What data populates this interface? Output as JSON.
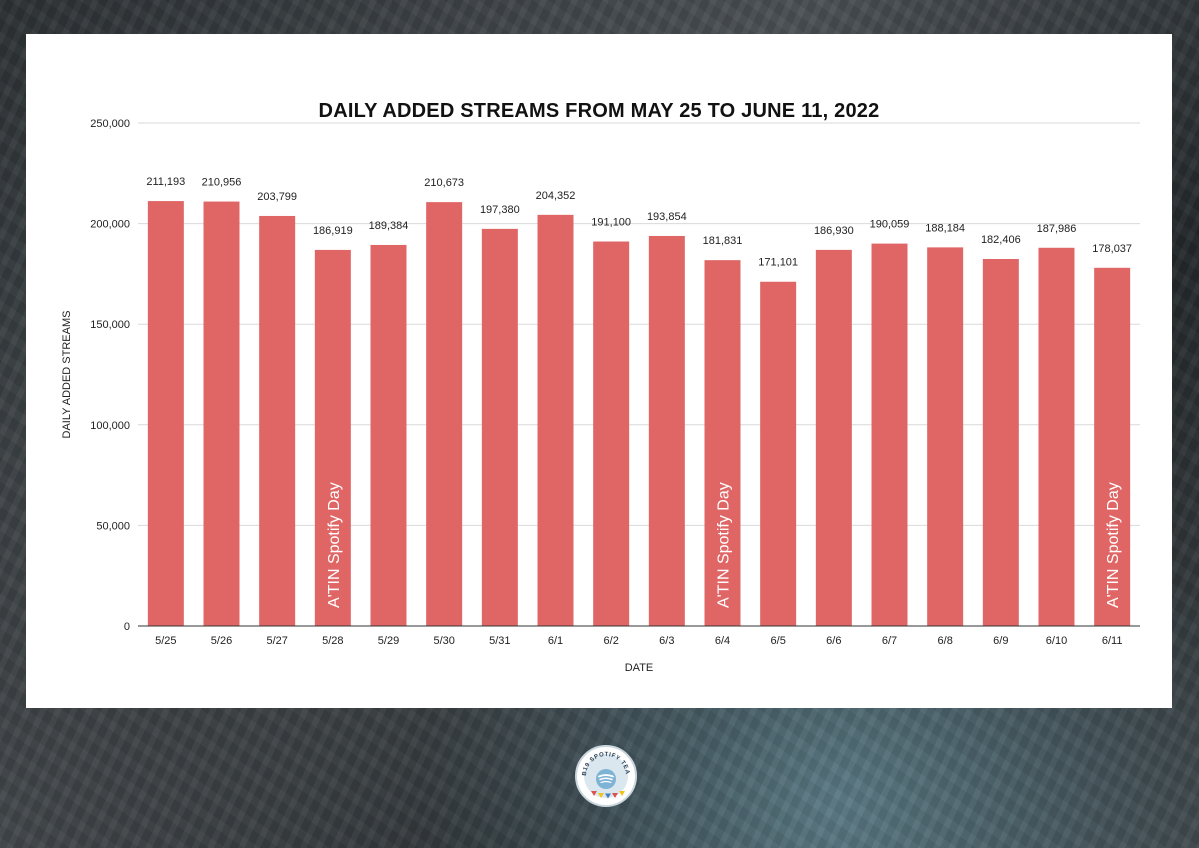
{
  "chart_data": {
    "type": "bar",
    "title": "DAILY ADDED STREAMS FROM MAY 25 TO JUNE 11, 2022",
    "xlabel": "DATE",
    "ylabel": "DAILY ADDED STREAMS",
    "ylim": [
      0,
      250000
    ],
    "yticks": [
      0,
      50000,
      100000,
      150000,
      200000,
      250000
    ],
    "ytick_labels": [
      "0",
      "50,000",
      "100,000",
      "150,000",
      "200,000",
      "250,000"
    ],
    "grid": true,
    "bar_color": "#e06666",
    "categories": [
      "5/25",
      "5/26",
      "5/27",
      "5/28",
      "5/29",
      "5/30",
      "5/31",
      "6/1",
      "6/2",
      "6/3",
      "6/4",
      "6/5",
      "6/6",
      "6/7",
      "6/8",
      "6/9",
      "6/10",
      "6/11"
    ],
    "values": [
      211193,
      210956,
      203799,
      186919,
      189384,
      210673,
      197380,
      204352,
      191100,
      193854,
      181831,
      171101,
      186930,
      190059,
      188184,
      182406,
      187986,
      178037
    ],
    "value_labels": [
      "211,193",
      "210,956",
      "203,799",
      "186,919",
      "189,384",
      "210,673",
      "197,380",
      "204,352",
      "191,100",
      "193,854",
      "181,831",
      "171,101",
      "186,930",
      "190,059",
      "188,184",
      "182,406",
      "187,986",
      "178,037"
    ],
    "annotations": [
      {
        "category": "5/28",
        "text": "A'TIN Spotify Day"
      },
      {
        "category": "6/4",
        "text": "A'TIN Spotify Day"
      },
      {
        "category": "6/11",
        "text": "A'TIN Spotify Day"
      }
    ]
  },
  "logo": {
    "text": "SB19 SPOTIFY TEAM",
    "icon": "spotify-logo-icon"
  }
}
